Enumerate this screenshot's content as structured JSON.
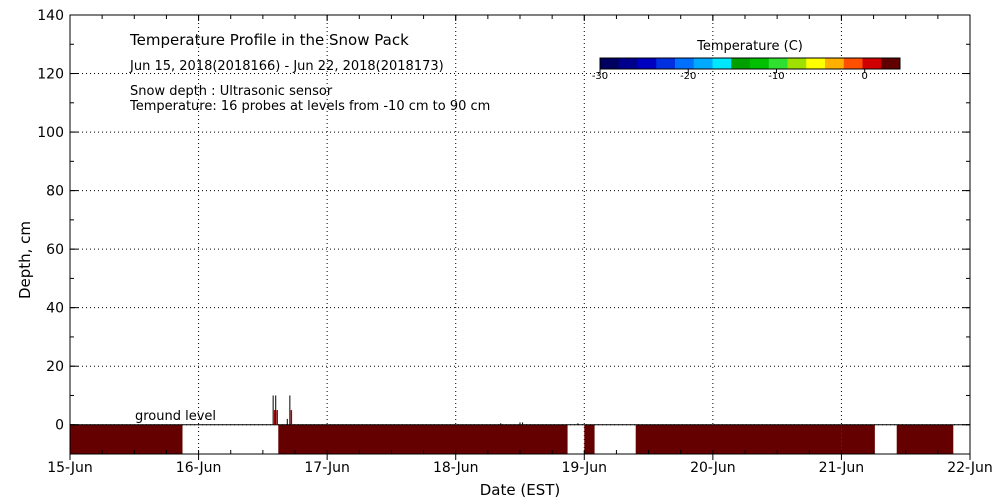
{
  "chart_data": {
    "type": "heatmap",
    "title": "Temperature Profile in the Snow Pack",
    "subtitle": "Jun 15, 2018(2018166) - Jun 22, 2018(2018173)",
    "notes": [
      "Snow depth : Ultrasonic sensor",
      "Temperature: 16 probes at levels from -10 cm to 90 cm"
    ],
    "xlabel": "Date (EST)",
    "ylabel": "Depth, cm",
    "ground_label": "ground level",
    "x_ticks": [
      "15-Jun",
      "16-Jun",
      "17-Jun",
      "18-Jun",
      "19-Jun",
      "20-Jun",
      "21-Jun",
      "22-Jun"
    ],
    "xlim_days": [
      0,
      7
    ],
    "ylim": [
      -10,
      140
    ],
    "y_ticks": [
      0,
      20,
      40,
      60,
      80,
      100,
      120,
      140
    ],
    "grid": true,
    "colorbar": {
      "title": "Temperature (C)",
      "range": [
        -30,
        4
      ],
      "ticks": [
        -30,
        -20,
        -10,
        0
      ],
      "tick_labels": [
        "-30",
        "-20",
        "-10",
        "0"
      ],
      "colors": [
        "#000060",
        "#00008c",
        "#0000c0",
        "#0030e0",
        "#0070ff",
        "#00aaff",
        "#00e8ff",
        "#00a000",
        "#00c000",
        "#30e030",
        "#a0e000",
        "#ffff00",
        "#ffb000",
        "#ff5000",
        "#d00000",
        "#600000"
      ]
    },
    "ground_segments": [
      {
        "start": 0.0,
        "end": 0.875,
        "color": "#640000"
      },
      {
        "start": 1.62,
        "end": 3.87,
        "color": "#640000"
      },
      {
        "start": 4.0,
        "end": 4.08,
        "color": "#640000"
      },
      {
        "start": 4.4,
        "end": 6.0,
        "color": "#640000"
      },
      {
        "start": 6.0,
        "end": 6.26,
        "color": "#640000"
      },
      {
        "start": 6.43,
        "end": 6.87,
        "color": "#640000"
      }
    ],
    "snow_spikes": [
      {
        "day": 1.58,
        "depth": 10
      },
      {
        "day": 1.6,
        "depth": 10
      },
      {
        "day": 1.69,
        "depth": 2
      },
      {
        "day": 1.71,
        "depth": 10
      },
      {
        "day": 3.35,
        "depth": 0.5
      },
      {
        "day": 3.5,
        "depth": 0.8
      },
      {
        "day": 3.52,
        "depth": 0.8
      },
      {
        "day": 3.95,
        "depth": 0.5
      }
    ]
  }
}
